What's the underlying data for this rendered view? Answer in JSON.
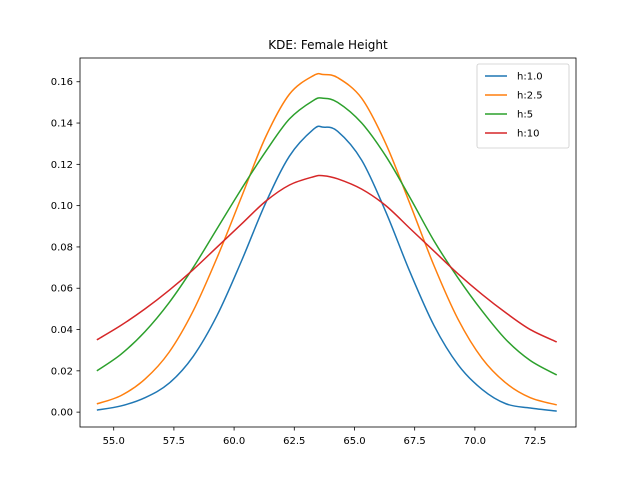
{
  "chart_data": {
    "type": "line",
    "title": "KDE: Female Height",
    "xlabel": "",
    "ylabel": "",
    "xlim": [
      53.6,
      74.2
    ],
    "ylim": [
      -0.0072,
      0.1715
    ],
    "xticks": [
      55.0,
      57.5,
      60.0,
      62.5,
      65.0,
      67.5,
      70.0,
      72.5
    ],
    "xtick_labels": [
      "55.0",
      "57.5",
      "60.0",
      "62.5",
      "65.0",
      "67.5",
      "70.0",
      "72.5"
    ],
    "yticks": [
      0.0,
      0.02,
      0.04,
      0.06,
      0.08,
      0.1,
      0.12,
      0.14,
      0.16
    ],
    "ytick_labels": [
      "0.00",
      "0.02",
      "0.04",
      "0.06",
      "0.08",
      "0.10",
      "0.12",
      "0.14",
      "0.16"
    ],
    "grid": false,
    "legend": "top-right",
    "x": [
      54.3,
      55.3,
      56.3,
      57.3,
      58.3,
      59.3,
      60.3,
      61.3,
      62.3,
      63.3,
      63.7,
      64.3,
      65.3,
      66.3,
      67.3,
      68.3,
      69.3,
      70.3,
      71.3,
      72.3,
      73.4
    ],
    "series": [
      {
        "name": "h:1.0",
        "color": "#1f77b4",
        "values": [
          0.001,
          0.003,
          0.007,
          0.014,
          0.027,
          0.047,
          0.073,
          0.101,
          0.124,
          0.137,
          0.138,
          0.136,
          0.122,
          0.097,
          0.068,
          0.042,
          0.023,
          0.011,
          0.004,
          0.002,
          0.0005
        ]
      },
      {
        "name": "h:2.5",
        "color": "#ff7f0e",
        "values": [
          0.004,
          0.008,
          0.016,
          0.029,
          0.049,
          0.075,
          0.104,
          0.133,
          0.154,
          0.163,
          0.1635,
          0.162,
          0.152,
          0.13,
          0.101,
          0.071,
          0.045,
          0.026,
          0.014,
          0.007,
          0.0035
        ]
      },
      {
        "name": "h:5",
        "color": "#2ca02c",
        "values": [
          0.02,
          0.028,
          0.039,
          0.053,
          0.07,
          0.089,
          0.108,
          0.126,
          0.142,
          0.151,
          0.152,
          0.15,
          0.14,
          0.124,
          0.104,
          0.083,
          0.065,
          0.049,
          0.035,
          0.025,
          0.018
        ]
      },
      {
        "name": "h:10",
        "color": "#d62728",
        "values": [
          0.035,
          0.042,
          0.05,
          0.059,
          0.069,
          0.08,
          0.091,
          0.102,
          0.11,
          0.114,
          0.1145,
          0.113,
          0.108,
          0.1,
          0.089,
          0.078,
          0.067,
          0.057,
          0.048,
          0.04,
          0.034
        ]
      }
    ]
  }
}
